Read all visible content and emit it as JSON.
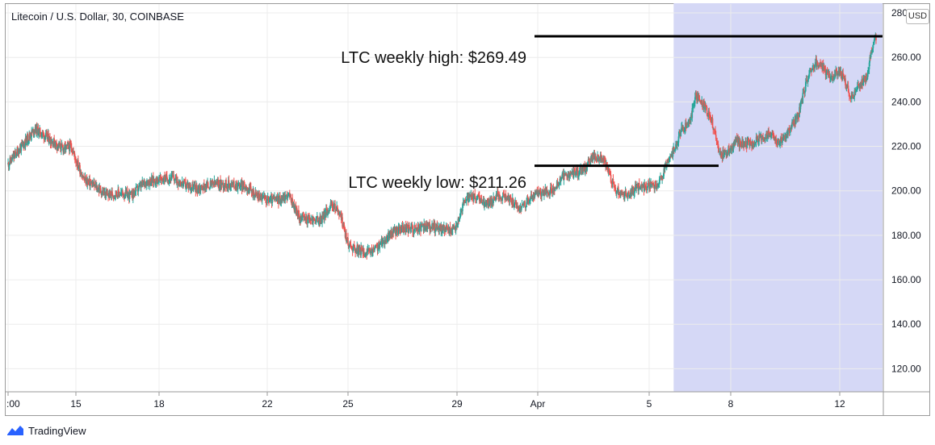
{
  "chart_title": "Litecoin / U.S. Dollar, 30, COINBASE",
  "currency_badge": "USD",
  "footer_brand": "TradingView",
  "colors": {
    "up_candle": "#26a69a",
    "down_candle": "#ef5350",
    "highlight_band": "#d5d8f6",
    "annotation_line": "#000000"
  },
  "annotations": {
    "high_label": "LTC weekly high: $269.49",
    "low_label": "LTC weekly low: $211.26"
  },
  "chart_data": {
    "type": "candlestick",
    "title": "Litecoin / U.S. Dollar, 30, COINBASE",
    "ylim": [
      110,
      284
    ],
    "y_ticks": [
      120,
      140,
      160,
      180,
      200,
      220,
      240,
      260,
      280
    ],
    "y_tick_labels": [
      "120.00",
      "140.00",
      "160.00",
      "180.00",
      "200.00",
      "220.00",
      "240.00",
      "260.00",
      "280.00"
    ],
    "x_day_range": [
      12,
      43
    ],
    "x_ticks": [
      {
        "day": 12,
        "label": ":00"
      },
      {
        "day": 15,
        "label": "15"
      },
      {
        "day": 18,
        "label": "18"
      },
      {
        "day": 22,
        "label": "22"
      },
      {
        "day": 25,
        "label": "25"
      },
      {
        "day": 29,
        "label": "29"
      },
      {
        "day": 32,
        "label": "Apr"
      },
      {
        "day": 36,
        "label": "5"
      },
      {
        "day": 39,
        "label": "8"
      },
      {
        "day": 43,
        "label": "12"
      }
    ],
    "highlight_range": [
      36.9,
      43
    ],
    "weekly_high": 269.49,
    "weekly_low": 211.26,
    "price_path": [
      [
        12.0,
        212
      ],
      [
        12.6,
        220
      ],
      [
        13.2,
        228
      ],
      [
        13.6,
        225
      ],
      [
        14.0,
        222
      ],
      [
        14.4,
        219
      ],
      [
        14.8,
        220
      ],
      [
        15.3,
        205
      ],
      [
        15.7,
        202
      ],
      [
        16.1,
        198
      ],
      [
        16.5,
        199
      ],
      [
        17.0,
        198
      ],
      [
        17.5,
        204
      ],
      [
        18.0,
        205
      ],
      [
        18.5,
        206
      ],
      [
        18.9,
        203
      ],
      [
        19.4,
        201
      ],
      [
        20.0,
        203
      ],
      [
        20.6,
        203
      ],
      [
        21.2,
        202
      ],
      [
        21.6,
        198
      ],
      [
        22.0,
        196
      ],
      [
        22.4,
        196
      ],
      [
        22.8,
        198
      ],
      [
        23.2,
        188
      ],
      [
        23.6,
        187
      ],
      [
        24.0,
        187
      ],
      [
        24.4,
        194
      ],
      [
        24.7,
        190
      ],
      [
        25.0,
        176
      ],
      [
        25.4,
        173
      ],
      [
        25.8,
        172
      ],
      [
        26.2,
        176
      ],
      [
        26.6,
        181
      ],
      [
        27.0,
        183
      ],
      [
        27.5,
        183
      ],
      [
        28.0,
        184
      ],
      [
        28.5,
        183
      ],
      [
        28.9,
        182
      ],
      [
        29.3,
        196
      ],
      [
        29.7,
        197
      ],
      [
        30.1,
        194
      ],
      [
        30.5,
        198
      ],
      [
        30.9,
        197
      ],
      [
        31.3,
        192
      ],
      [
        31.6,
        195
      ],
      [
        32.0,
        199
      ],
      [
        32.5,
        200
      ],
      [
        32.9,
        206
      ],
      [
        33.3,
        208
      ],
      [
        33.7,
        210
      ],
      [
        34.0,
        216
      ],
      [
        34.4,
        213
      ],
      [
        34.8,
        200
      ],
      [
        35.2,
        198
      ],
      [
        35.6,
        202
      ],
      [
        36.0,
        202
      ],
      [
        36.3,
        202
      ],
      [
        36.6,
        210
      ],
      [
        36.9,
        218
      ],
      [
        37.2,
        228
      ],
      [
        37.5,
        230
      ],
      [
        37.7,
        243
      ],
      [
        38.0,
        238
      ],
      [
        38.3,
        232
      ],
      [
        38.6,
        216
      ],
      [
        38.9,
        218
      ],
      [
        39.2,
        222
      ],
      [
        39.6,
        221
      ],
      [
        40.0,
        223
      ],
      [
        40.4,
        226
      ],
      [
        40.8,
        222
      ],
      [
        41.2,
        228
      ],
      [
        41.5,
        235
      ],
      [
        41.8,
        250
      ],
      [
        42.1,
        258
      ],
      [
        42.4,
        255
      ],
      [
        42.7,
        250
      ],
      [
        42.9,
        253
      ],
      [
        43.1,
        252
      ],
      [
        43.4,
        242
      ],
      [
        43.7,
        247
      ],
      [
        44.0,
        252
      ],
      [
        44.2,
        266
      ],
      [
        44.35,
        268
      ]
    ]
  }
}
